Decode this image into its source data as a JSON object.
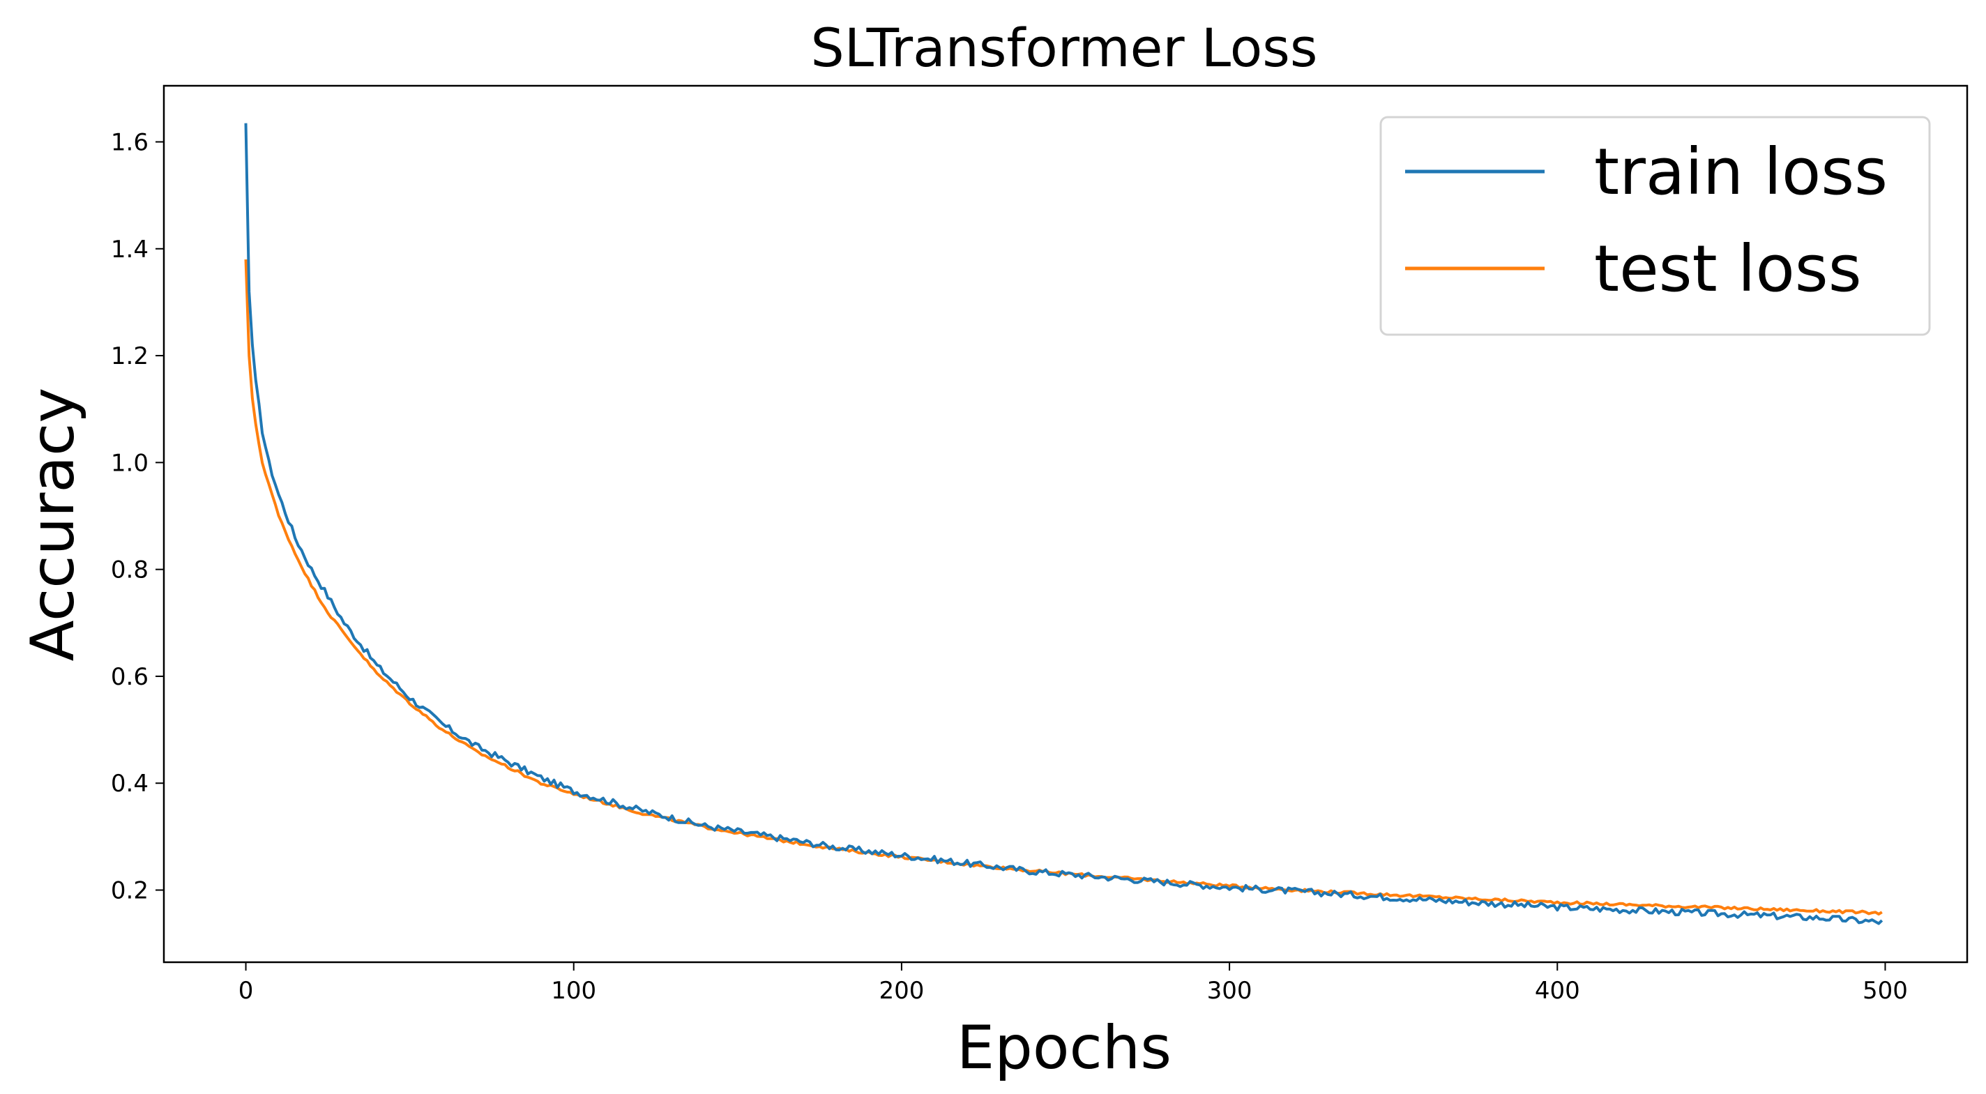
{
  "chart_data": {
    "type": "line",
    "title": "SLTransformer Loss",
    "xlabel": "Epochs",
    "ylabel": "Accuracy",
    "xlim": [
      -25,
      525
    ],
    "ylim": [
      0.065,
      1.705
    ],
    "x_ticks": [
      0,
      100,
      200,
      300,
      400,
      500
    ],
    "y_ticks": [
      0.2,
      0.4,
      0.6,
      0.8,
      1.0,
      1.2,
      1.4,
      1.6
    ],
    "grid": false,
    "legend_position": "top-right",
    "series": [
      {
        "name": "train loss",
        "color": "#1f77b4",
        "x": [
          0,
          1,
          2,
          3,
          5,
          7,
          10,
          15,
          20,
          25,
          30,
          40,
          50,
          60,
          70,
          80,
          90,
          100,
          120,
          140,
          160,
          180,
          200,
          220,
          240,
          260,
          280,
          300,
          320,
          340,
          360,
          380,
          400,
          420,
          440,
          460,
          480,
          499
        ],
        "y": [
          1.635,
          1.32,
          1.22,
          1.15,
          1.06,
          1.0,
          0.94,
          0.86,
          0.8,
          0.75,
          0.7,
          0.62,
          0.56,
          0.51,
          0.47,
          0.44,
          0.41,
          0.385,
          0.35,
          0.32,
          0.3,
          0.28,
          0.265,
          0.25,
          0.235,
          0.225,
          0.215,
          0.205,
          0.198,
          0.19,
          0.182,
          0.175,
          0.168,
          0.163,
          0.158,
          0.153,
          0.148,
          0.14
        ]
      },
      {
        "name": "test loss",
        "color": "#ff7f0e",
        "x": [
          0,
          1,
          2,
          3,
          5,
          7,
          10,
          15,
          20,
          25,
          30,
          40,
          50,
          60,
          70,
          80,
          90,
          100,
          120,
          140,
          160,
          180,
          200,
          220,
          240,
          260,
          280,
          300,
          320,
          340,
          360,
          380,
          400,
          420,
          440,
          460,
          480,
          499
        ],
        "y": [
          1.38,
          1.2,
          1.12,
          1.07,
          1.0,
          0.96,
          0.9,
          0.83,
          0.77,
          0.72,
          0.68,
          0.605,
          0.55,
          0.5,
          0.46,
          0.43,
          0.4,
          0.38,
          0.345,
          0.318,
          0.296,
          0.277,
          0.262,
          0.248,
          0.236,
          0.226,
          0.217,
          0.208,
          0.2,
          0.194,
          0.188,
          0.182,
          0.177,
          0.173,
          0.169,
          0.165,
          0.161,
          0.157
        ]
      }
    ]
  }
}
